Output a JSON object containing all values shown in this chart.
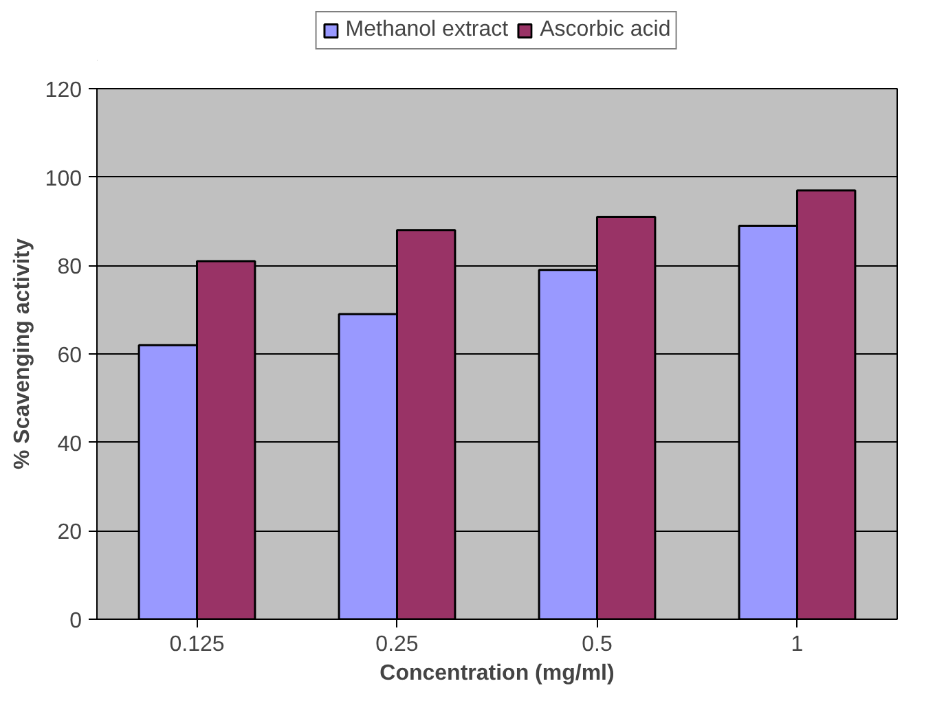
{
  "chart_data": {
    "type": "bar",
    "xlabel": "Concentration (mg/ml)",
    "ylabel": "% Scavenging activity",
    "categories": [
      "0.125",
      "0.25",
      "0.5",
      "1"
    ],
    "series": [
      {
        "name": "Methanol extract",
        "color": "#9999ff",
        "values": [
          62,
          69,
          79,
          89
        ]
      },
      {
        "name": "Ascorbic acid",
        "color": "#993366",
        "values": [
          81,
          88,
          91,
          97
        ]
      }
    ],
    "ylim": [
      0,
      120
    ],
    "yticks": [
      0,
      20,
      40,
      60,
      80,
      100,
      120
    ],
    "grid": "y",
    "legend": "top"
  }
}
